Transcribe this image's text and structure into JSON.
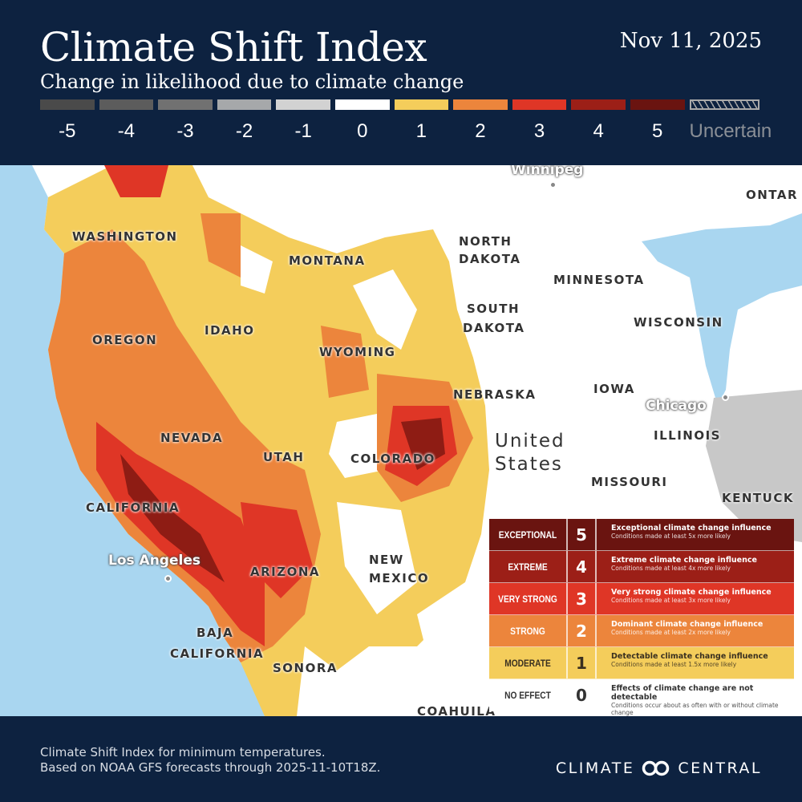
{
  "header": {
    "title": "Climate Shift Index",
    "subtitle": "Change in likelihood due to climate change",
    "date": "Nov 11, 2025"
  },
  "scale": {
    "items": [
      {
        "label": "-5",
        "color": "#4a4a4a"
      },
      {
        "label": "-4",
        "color": "#5c5c5c"
      },
      {
        "label": "-3",
        "color": "#717171"
      },
      {
        "label": "-2",
        "color": "#a6a8aa"
      },
      {
        "label": "-1",
        "color": "#d2d2d2"
      },
      {
        "label": "0",
        "color": "#ffffff"
      },
      {
        "label": "1",
        "color": "#f4cd5b"
      },
      {
        "label": "2",
        "color": "#ec853c"
      },
      {
        "label": "3",
        "color": "#df3626"
      },
      {
        "label": "4",
        "color": "#9c1f17"
      },
      {
        "label": "5",
        "color": "#6a1410"
      }
    ],
    "uncertain_label": "Uncertain"
  },
  "map": {
    "states": [
      "WASHINGTON",
      "MONTANA",
      "NORTH",
      "DAKOTA",
      "MINNESOTA",
      "SOUTH",
      "DAKOTA",
      "WISCONSIN",
      "OREGON",
      "IDAHO",
      "WYOMING",
      "NEBRASKA",
      "IOWA",
      "NEVADA",
      "UTAH",
      "COLORADO",
      "ILLINOIS",
      "MISSOURI",
      "KENTUCK",
      "CALIFORNIA",
      "ARIZONA",
      "NEW",
      "MEXICO",
      "BAJA",
      "CALIFORNIA",
      "SONORA",
      "COAHUILA",
      "ONTAR"
    ],
    "cities": [
      "Winnipeg",
      "Chicago",
      "Los Angeles"
    ],
    "country": [
      "United",
      "States"
    ],
    "colors": {
      "ocean": "#a9d6f0",
      "land": "#ffffff"
    }
  },
  "legend": [
    {
      "category": "EXCEPTIONAL",
      "value": "5",
      "title": "Exceptional climate change influence",
      "detail": "Conditions made at least 5x more likely",
      "bg": "#6a1410",
      "fg": "#ffffff"
    },
    {
      "category": "EXTREME",
      "value": "4",
      "title": "Extreme climate change influence",
      "detail": "Conditions made at least 4x more likely",
      "bg": "#9c1f17",
      "fg": "#ffffff"
    },
    {
      "category": "VERY STRONG",
      "value": "3",
      "title": "Very strong climate change influence",
      "detail": "Conditions made at least 3x more likely",
      "bg": "#df3626",
      "fg": "#ffffff"
    },
    {
      "category": "STRONG",
      "value": "2",
      "title": "Dominant climate change influence",
      "detail": "Conditions made at least  2x more likely",
      "bg": "#ec853c",
      "fg": "#ffffff"
    },
    {
      "category": "MODERATE",
      "value": "1",
      "title": "Detectable climate change influence",
      "detail": "Conditions made at least 1.5x more likely",
      "bg": "#f4cd5b",
      "fg": "#3a3020"
    },
    {
      "category": "NO EFFECT",
      "value": "0",
      "title": "Effects of climate change are not detectable",
      "detail": "Conditions occur about as often with or without climate change",
      "bg": "#ffffff",
      "fg": "#333333"
    }
  ],
  "footer": {
    "line1": "Climate Shift Index for minimum temperatures.",
    "line2": "Based on NOAA GFS forecasts through 2025-11-10T18Z.",
    "brand_left": "CLIMATE",
    "brand_right": "CENTRAL"
  }
}
